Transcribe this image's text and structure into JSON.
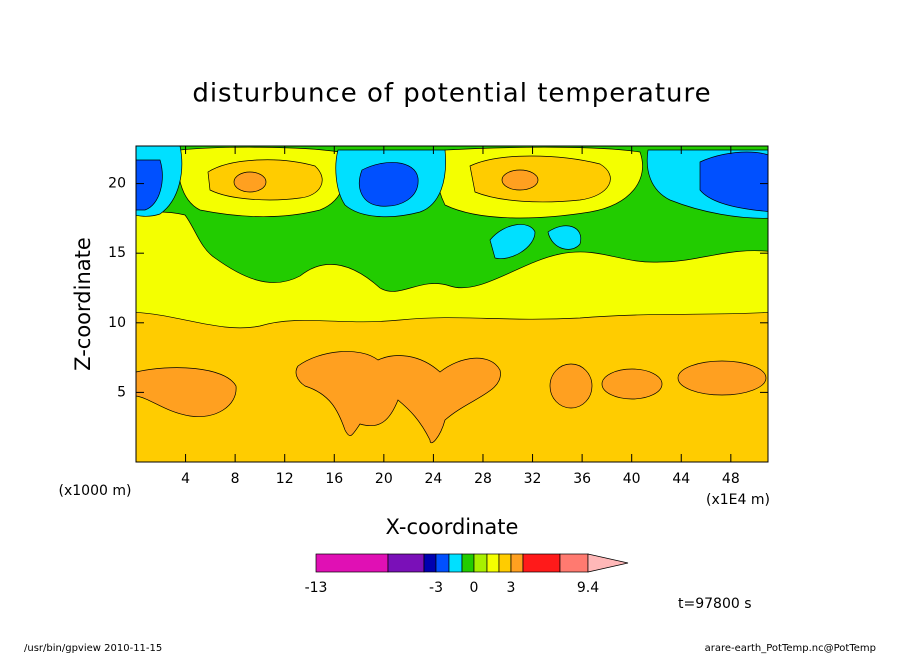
{
  "chart_data": {
    "type": "contour",
    "title": "disturbunce of potential temperature",
    "x_label": "X-coordinate",
    "y_label": "Z-coordinate",
    "x_unit_label": "(x1E4 m)",
    "y_unit_label": "(x1000 m)",
    "xlim": [
      0,
      51
    ],
    "ylim": [
      0,
      22.7
    ],
    "xticks": [
      4,
      8,
      12,
      16,
      20,
      24,
      28,
      32,
      36,
      40,
      44,
      48
    ],
    "yticks": [
      5,
      10,
      15,
      20
    ],
    "colorbar": {
      "colors": [
        "#e010b4",
        "#7a10b8",
        "#0000b0",
        "#0050ff",
        "#00e0ff",
        "#22cc00",
        "#a8f000",
        "#f4ff00",
        "#ffcc00",
        "#ffa020",
        "#ff1a1a",
        "#ff7a70",
        "#ffb8b8"
      ],
      "ticks": [
        -13,
        -3,
        0,
        3,
        9.4
      ]
    },
    "annotation": "t=97800 s",
    "footer_left": "/usr/bin/gpview   2010-11-15",
    "footer_right": "arare-earth_PotTemp.nc@PotTemp"
  }
}
